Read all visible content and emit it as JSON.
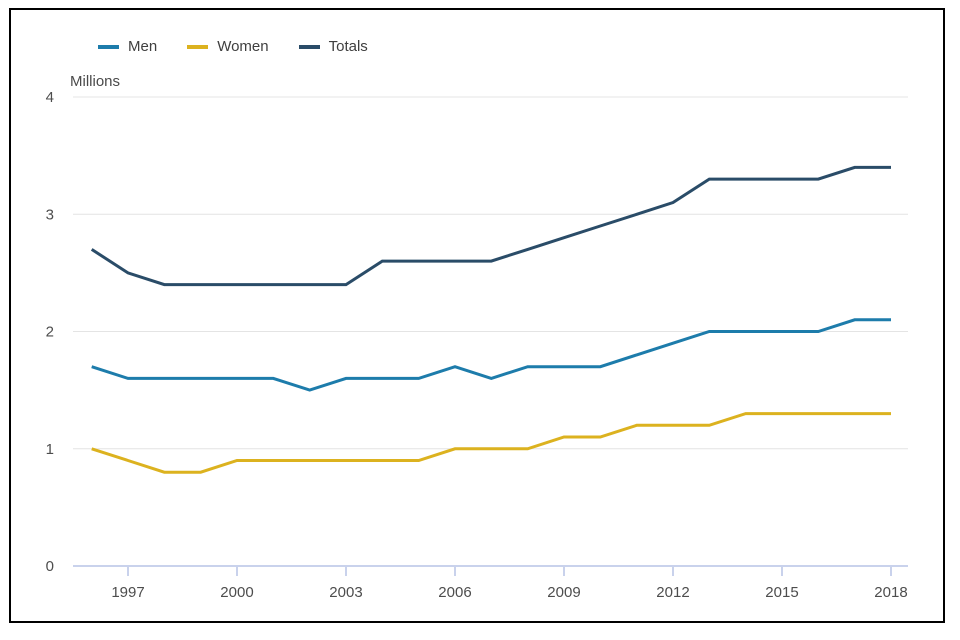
{
  "unit_label": "Millions",
  "colors": {
    "men": "#1d7cab",
    "women": "#dcb21f",
    "totals": "#2a4c68",
    "gridline": "#e4e4e4",
    "axis": "#c9d2ec",
    "frame_border": "#000000",
    "label_text": "#4d4d4d"
  },
  "chart_data": {
    "type": "line",
    "title": "",
    "unit_label": "Millions",
    "xlabel": "",
    "ylabel": "Millions",
    "ylim": [
      0,
      4
    ],
    "grid": true,
    "legend_position": "top",
    "x": [
      1996,
      1997,
      1998,
      1999,
      2000,
      2001,
      2002,
      2003,
      2004,
      2005,
      2006,
      2007,
      2008,
      2009,
      2010,
      2011,
      2012,
      2013,
      2014,
      2015,
      2016,
      2017,
      2018
    ],
    "x_ticks": [
      1997,
      2000,
      2003,
      2006,
      2009,
      2012,
      2015,
      2018
    ],
    "y_ticks": [
      0,
      1,
      2,
      3,
      4
    ],
    "series": [
      {
        "name": "Men",
        "color": "#1d7cab",
        "values": [
          1.7,
          1.6,
          1.6,
          1.6,
          1.6,
          1.6,
          1.5,
          1.6,
          1.6,
          1.6,
          1.7,
          1.6,
          1.7,
          1.7,
          1.7,
          1.8,
          1.9,
          2.0,
          2.0,
          2.0,
          2.0,
          2.1,
          2.1
        ]
      },
      {
        "name": "Women",
        "color": "#dcb21f",
        "values": [
          1.0,
          0.9,
          0.8,
          0.8,
          0.9,
          0.9,
          0.9,
          0.9,
          0.9,
          0.9,
          1.0,
          1.0,
          1.0,
          1.1,
          1.1,
          1.2,
          1.2,
          1.2,
          1.3,
          1.3,
          1.3,
          1.3,
          1.3
        ]
      },
      {
        "name": "Totals",
        "color": "#2a4c68",
        "values": [
          2.7,
          2.5,
          2.4,
          2.4,
          2.4,
          2.4,
          2.4,
          2.4,
          2.6,
          2.6,
          2.6,
          2.6,
          2.7,
          2.8,
          2.9,
          3.0,
          3.1,
          3.3,
          3.3,
          3.3,
          3.3,
          3.4,
          3.4
        ]
      }
    ]
  }
}
